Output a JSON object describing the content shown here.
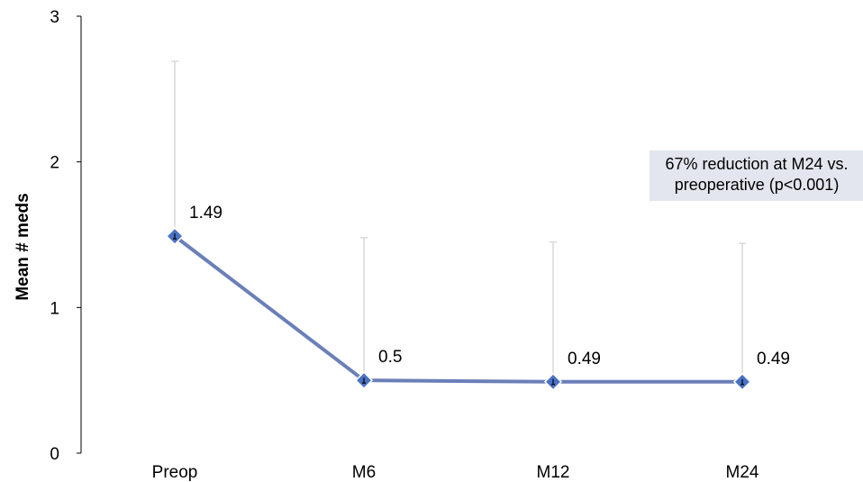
{
  "chart_data": {
    "type": "line",
    "categories": [
      "Preop",
      "M6",
      "M12",
      "M24"
    ],
    "series": [
      {
        "values": [
          1.49,
          0.5,
          0.49,
          0.49
        ],
        "error_upper": [
          2.69,
          1.48,
          1.45,
          1.44
        ]
      }
    ],
    "data_labels": [
      "1.49",
      "0.5",
      "0.49",
      "0.49"
    ],
    "ylabel": "Mean # meds",
    "xlabel": "",
    "ylim": [
      0,
      3
    ],
    "yticks": [
      0,
      1,
      2,
      3
    ],
    "grid": false,
    "legend": "none",
    "colors": {
      "line": "#6b7fb8",
      "marker": "#4a72c4",
      "error_bar": "#d9d9d9",
      "axis": "#000000"
    },
    "annotation": {
      "line1": "67% reduction at M24 vs.",
      "line2": "preoperative (p<0.001)"
    }
  }
}
